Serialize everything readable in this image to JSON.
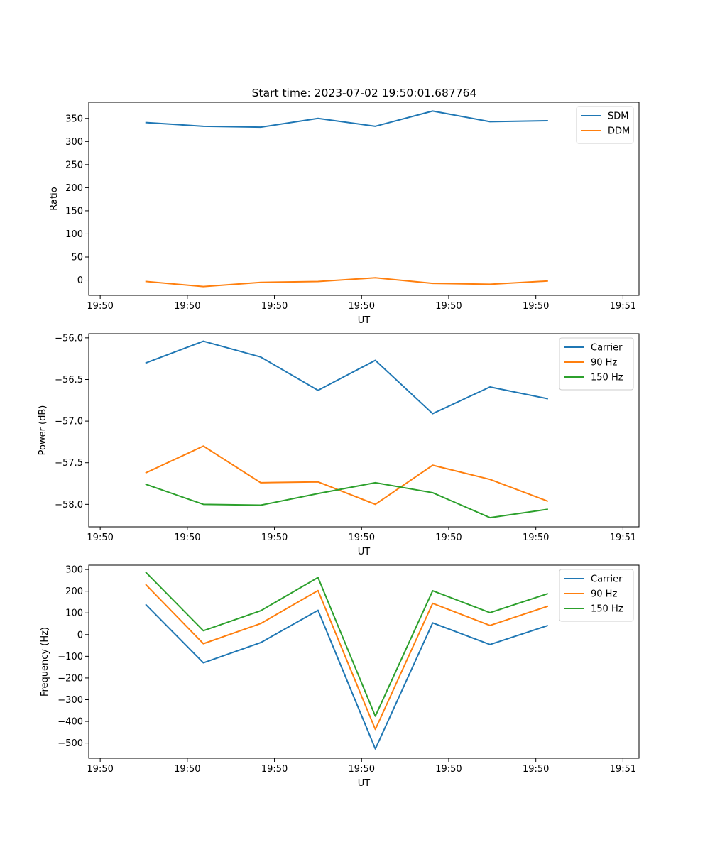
{
  "figure_title": "Start time: 2023-07-02 19:50:01.687764",
  "colors": {
    "blue": "#1f77b4",
    "orange": "#ff7f0e",
    "green": "#2ca02c"
  },
  "chart_data": [
    {
      "type": "line",
      "title": "Start time: 2023-07-02 19:50:01.687764",
      "xlabel": "UT",
      "ylabel": "Ratio",
      "x": [
        1,
        2,
        3,
        4,
        5,
        6,
        7,
        8
      ],
      "xlim": [
        0,
        9.6
      ],
      "xticks": [
        0.2,
        1.72,
        3.24,
        4.76,
        6.28,
        7.8,
        9.32
      ],
      "xtick_labels": [
        "19:50",
        "19:50",
        "19:50",
        "19:50",
        "19:50",
        "19:50",
        "19:51"
      ],
      "ylim": [
        -33,
        385
      ],
      "yticks": [
        0,
        50,
        100,
        150,
        200,
        250,
        300,
        350
      ],
      "ytick_labels": [
        "0",
        "50",
        "100",
        "150",
        "200",
        "250",
        "300",
        "350"
      ],
      "legend_position": "upper-right",
      "series": [
        {
          "name": "SDM",
          "color": "#1f77b4",
          "values": [
            341,
            333,
            331,
            350,
            333,
            366,
            343,
            345
          ]
        },
        {
          "name": "DDM",
          "color": "#ff7f0e",
          "values": [
            -3,
            -14,
            -5,
            -3,
            5,
            -7,
            -9,
            -2
          ]
        }
      ]
    },
    {
      "type": "line",
      "title": "",
      "xlabel": "UT",
      "ylabel": "Power (dB)",
      "x": [
        1,
        2,
        3,
        4,
        5,
        6,
        7,
        8
      ],
      "xlim": [
        0,
        9.6
      ],
      "xticks": [
        0.2,
        1.72,
        3.24,
        4.76,
        6.28,
        7.8,
        9.32
      ],
      "xtick_labels": [
        "19:50",
        "19:50",
        "19:50",
        "19:50",
        "19:50",
        "19:50",
        "19:51"
      ],
      "ylim": [
        -58.27,
        -55.95
      ],
      "yticks": [
        -58.0,
        -57.5,
        -57.0,
        -56.5,
        -56.0
      ],
      "ytick_labels": [
        "−58.0",
        "−57.5",
        "−57.0",
        "−56.5",
        "−56.0"
      ],
      "legend_position": "upper-right",
      "series": [
        {
          "name": "Carrier",
          "color": "#1f77b4",
          "values": [
            -56.3,
            -56.04,
            -56.23,
            -56.63,
            -56.27,
            -56.91,
            -56.59,
            -56.73
          ]
        },
        {
          "name": "90 Hz",
          "color": "#ff7f0e",
          "values": [
            -57.62,
            -57.3,
            -57.74,
            -57.73,
            -58.0,
            -57.53,
            -57.7,
            -57.96
          ]
        },
        {
          "name": "150 Hz",
          "color": "#2ca02c",
          "values": [
            -57.76,
            -58.0,
            -58.01,
            -57.87,
            -57.74,
            -57.86,
            -58.16,
            -58.06
          ]
        }
      ]
    },
    {
      "type": "line",
      "title": "",
      "xlabel": "UT",
      "ylabel": "Frequency (Hz)",
      "x": [
        1,
        2,
        3,
        4,
        5,
        6,
        7,
        8
      ],
      "xlim": [
        0,
        9.6
      ],
      "xticks": [
        0.2,
        1.72,
        3.24,
        4.76,
        6.28,
        7.8,
        9.32
      ],
      "xtick_labels": [
        "19:50",
        "19:50",
        "19:50",
        "19:50",
        "19:50",
        "19:50",
        "19:51"
      ],
      "ylim": [
        -570,
        320
      ],
      "yticks": [
        -500,
        -400,
        -300,
        -200,
        -100,
        0,
        100,
        200,
        300
      ],
      "ytick_labels": [
        "−500",
        "−400",
        "−300",
        "−200",
        "−100",
        "0",
        "100",
        "200",
        "300"
      ],
      "legend_position": "upper-right",
      "series": [
        {
          "name": "Carrier",
          "color": "#1f77b4",
          "values": [
            137,
            -130,
            -37,
            112,
            -527,
            54,
            -46,
            41
          ]
        },
        {
          "name": "90 Hz",
          "color": "#ff7f0e",
          "values": [
            229,
            -42,
            51,
            203,
            -437,
            144,
            42,
            130
          ]
        },
        {
          "name": "150 Hz",
          "color": "#2ca02c",
          "values": [
            286,
            18,
            110,
            263,
            -376,
            202,
            101,
            188
          ]
        }
      ]
    }
  ]
}
